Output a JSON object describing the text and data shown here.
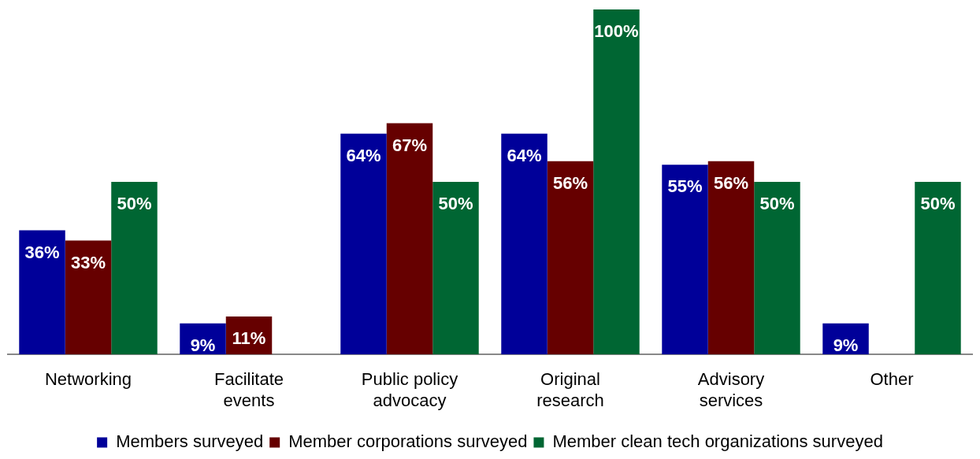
{
  "chart_data": {
    "type": "bar",
    "categories": [
      "Networking",
      "Facilitate events",
      "Public policy advocacy",
      "Original research",
      "Advisory services",
      "Other"
    ],
    "series": [
      {
        "name": "Members surveyed",
        "color": "#000099",
        "values": [
          36,
          9,
          64,
          64,
          55,
          9
        ],
        "value_labels": [
          "36%",
          "9%",
          "64%",
          "64%",
          "55%",
          "9%"
        ]
      },
      {
        "name": "Member corporations surveyed",
        "color": "#660000",
        "values": [
          33,
          11,
          67,
          56,
          56,
          null
        ],
        "value_labels": [
          "33%",
          "11%",
          "67%",
          "56%",
          "56%",
          null
        ]
      },
      {
        "name": "Member clean tech organizations surveyed",
        "color": "#006633",
        "values": [
          50,
          null,
          50,
          100,
          50,
          50
        ],
        "value_labels": [
          "50%",
          null,
          "50%",
          "100%",
          "50%",
          "50%"
        ]
      }
    ],
    "legend": "bottom",
    "grid": false
  }
}
